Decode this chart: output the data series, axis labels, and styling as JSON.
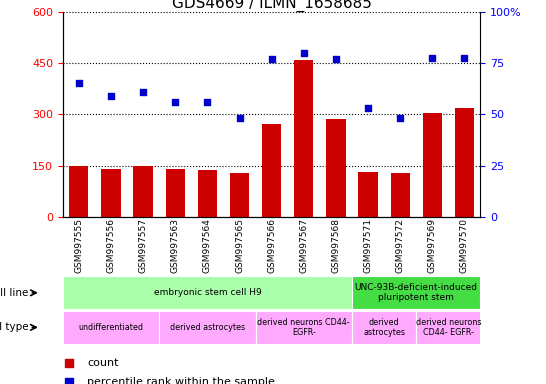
{
  "title": "GDS4669 / ILMN_1658685",
  "samples": [
    "GSM997555",
    "GSM997556",
    "GSM997557",
    "GSM997563",
    "GSM997564",
    "GSM997565",
    "GSM997566",
    "GSM997567",
    "GSM997568",
    "GSM997571",
    "GSM997572",
    "GSM997569",
    "GSM997570"
  ],
  "counts": [
    148,
    140,
    148,
    140,
    138,
    128,
    272,
    458,
    285,
    132,
    128,
    305,
    318
  ],
  "percentiles_left_scale": [
    390,
    352,
    365,
    335,
    335,
    288,
    460,
    480,
    460,
    318,
    288,
    465,
    465
  ],
  "ylim_left": [
    0,
    600
  ],
  "ylim_right": [
    0,
    100
  ],
  "yticks_left": [
    0,
    150,
    300,
    450,
    600
  ],
  "yticks_right": [
    0,
    25,
    50,
    75,
    100
  ],
  "bar_color": "#cc0000",
  "dot_color": "#0000cc",
  "cell_line_groups": [
    {
      "label": "embryonic stem cell H9",
      "start": 0,
      "end": 9,
      "color": "#aaffaa"
    },
    {
      "label": "UNC-93B-deficient-induced\npluripotent stem",
      "start": 9,
      "end": 13,
      "color": "#44dd44"
    }
  ],
  "cell_type_groups": [
    {
      "label": "undifferentiated",
      "start": 0,
      "end": 3,
      "color": "#ffaaff"
    },
    {
      "label": "derived astrocytes",
      "start": 3,
      "end": 6,
      "color": "#ffaaff"
    },
    {
      "label": "derived neurons CD44-\nEGFR-",
      "start": 6,
      "end": 9,
      "color": "#ffaaff"
    },
    {
      "label": "derived\nastrocytes",
      "start": 9,
      "end": 11,
      "color": "#ffaaff"
    },
    {
      "label": "derived neurons\nCD44- EGFR-",
      "start": 11,
      "end": 13,
      "color": "#ffaaff"
    }
  ],
  "legend_count_label": "count",
  "legend_pct_label": "percentile rank within the sample",
  "cell_line_label": "cell line",
  "cell_type_label": "cell type"
}
